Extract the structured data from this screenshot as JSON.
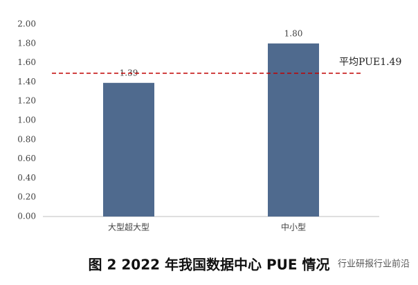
{
  "chart_data": {
    "type": "bar",
    "title": "图 2 2022 年我国数据中心 PUE 情况",
    "categories": [
      "大型超大型",
      "中小型"
    ],
    "values": [
      1.39,
      1.8
    ],
    "value_labels": [
      "1.39",
      "1.80"
    ],
    "color": "#4f6a8e",
    "ylim": [
      0,
      2
    ],
    "yticks": [
      {
        "value": 0,
        "label": "0.00"
      },
      {
        "value": 0.2,
        "label": "0.20"
      },
      {
        "value": 0.4,
        "label": "0.40"
      },
      {
        "value": 0.6,
        "label": "0.60"
      },
      {
        "value": 0.8,
        "label": "0.80"
      },
      {
        "value": 1,
        "label": "1.00"
      },
      {
        "value": 1.2,
        "label": "1.20"
      },
      {
        "value": 1.4,
        "label": "1.40"
      },
      {
        "value": 1.6,
        "label": "1.60"
      },
      {
        "value": 1.8,
        "label": "1.80"
      },
      {
        "value": 2,
        "label": "2.00"
      }
    ],
    "average": {
      "value": 1.49,
      "label": "平均PUE1.49",
      "color": "#c00000"
    },
    "watermark": "行业研报行业前沿"
  }
}
